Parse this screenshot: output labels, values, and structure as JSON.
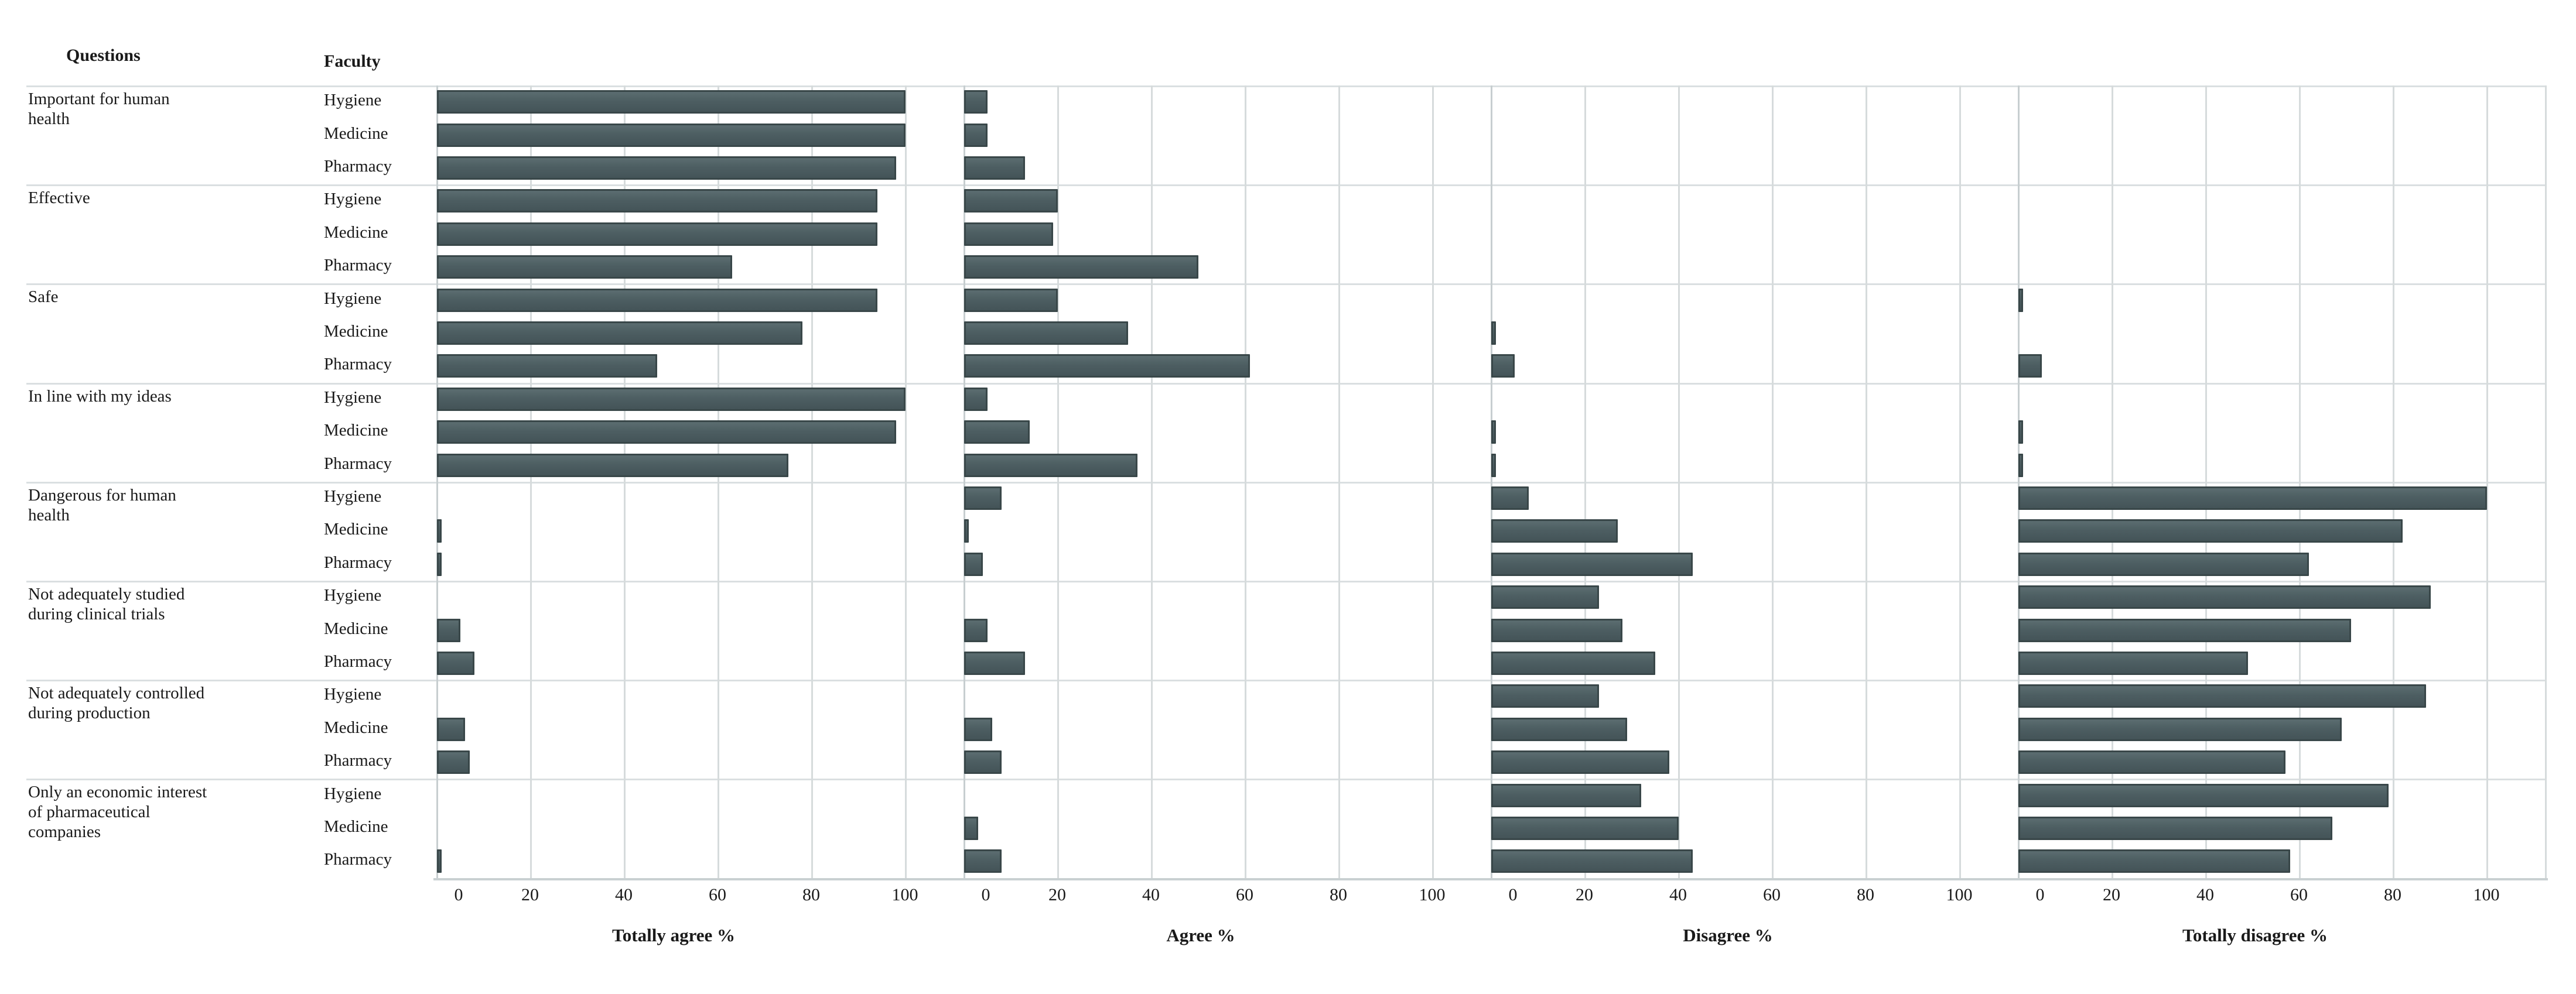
{
  "header": {
    "questions_label": "Questions",
    "faculty_label": "Faculty"
  },
  "colors": {
    "bar_fill": "#4d5e62",
    "bar_border": "#394749",
    "gridline": "#d6dbdc",
    "separator": "#dadfe1",
    "axis_line": "#c9d0d2",
    "background": "#ffffff"
  },
  "chart_data": {
    "type": "bar",
    "orientation": "horizontal",
    "grid": true,
    "legend": false,
    "axis_range": [
      0,
      100
    ],
    "axis_ticks": [
      0,
      20,
      40,
      60,
      80,
      100
    ],
    "panels": [
      "Totally agree %",
      "Agree %",
      "Disagree %",
      "Totally disagree %"
    ],
    "faculties": [
      "Hygiene",
      "Medicine",
      "Pharmacy"
    ],
    "questions": [
      "Important  for human\nhealth",
      "Effective",
      "Safe",
      "In line with my ideas",
      "Dangerous for human\nhealth",
      "Not adequately studied\nduring clinical  trials",
      "Not adequately controlled\nduring production",
      "Only an economic interest\nof pharmaceutical\ncompanies"
    ],
    "series": [
      {
        "panel": "Totally agree %",
        "values": [
          {
            "question": "Important  for human health",
            "Hygiene": 100,
            "Medicine": 100,
            "Pharmacy": 98
          },
          {
            "question": "Effective",
            "Hygiene": 94,
            "Medicine": 94,
            "Pharmacy": 63
          },
          {
            "question": "Safe",
            "Hygiene": 94,
            "Medicine": 78,
            "Pharmacy": 47
          },
          {
            "question": "In line with my ideas",
            "Hygiene": 100,
            "Medicine": 98,
            "Pharmacy": 75
          },
          {
            "question": "Dangerous for human health",
            "Hygiene": 0,
            "Medicine": 1,
            "Pharmacy": 1
          },
          {
            "question": "Not adequately studied during clinical trials",
            "Hygiene": 0,
            "Medicine": 5,
            "Pharmacy": 8
          },
          {
            "question": "Not adequately controlled during production",
            "Hygiene": 0,
            "Medicine": 6,
            "Pharmacy": 7
          },
          {
            "question": "Only an economic interest of pharmaceutical companies",
            "Hygiene": 0,
            "Medicine": 0,
            "Pharmacy": 1
          }
        ]
      },
      {
        "panel": "Agree %",
        "values": [
          {
            "question": "Important  for human health",
            "Hygiene": 5,
            "Medicine": 5,
            "Pharmacy": 13
          },
          {
            "question": "Effective",
            "Hygiene": 20,
            "Medicine": 19,
            "Pharmacy": 50
          },
          {
            "question": "Safe",
            "Hygiene": 20,
            "Medicine": 35,
            "Pharmacy": 61
          },
          {
            "question": "In line with my ideas",
            "Hygiene": 5,
            "Medicine": 14,
            "Pharmacy": 37
          },
          {
            "question": "Dangerous for human health",
            "Hygiene": 8,
            "Medicine": 1,
            "Pharmacy": 4
          },
          {
            "question": "Not adequately studied during clinical trials",
            "Hygiene": 0,
            "Medicine": 5,
            "Pharmacy": 13
          },
          {
            "question": "Not adequately controlled during production",
            "Hygiene": 0,
            "Medicine": 6,
            "Pharmacy": 8
          },
          {
            "question": "Only an economic interest of pharmaceutical companies",
            "Hygiene": 0,
            "Medicine": 3,
            "Pharmacy": 8
          }
        ]
      },
      {
        "panel": "Disagree %",
        "values": [
          {
            "question": "Important  for human health",
            "Hygiene": 0,
            "Medicine": 0,
            "Pharmacy": 0
          },
          {
            "question": "Effective",
            "Hygiene": 0,
            "Medicine": 0,
            "Pharmacy": 0
          },
          {
            "question": "Safe",
            "Hygiene": 0,
            "Medicine": 1,
            "Pharmacy": 5
          },
          {
            "question": "In line with my ideas",
            "Hygiene": 0,
            "Medicine": 1,
            "Pharmacy": 1
          },
          {
            "question": "Dangerous for human health",
            "Hygiene": 8,
            "Medicine": 27,
            "Pharmacy": 43
          },
          {
            "question": "Not adequately studied during clinical trials",
            "Hygiene": 23,
            "Medicine": 28,
            "Pharmacy": 35
          },
          {
            "question": "Not adequately controlled during production",
            "Hygiene": 23,
            "Medicine": 29,
            "Pharmacy": 38
          },
          {
            "question": "Only an economic interest of pharmaceutical companies",
            "Hygiene": 32,
            "Medicine": 40,
            "Pharmacy": 43
          }
        ]
      },
      {
        "panel": "Totally disagree %",
        "values": [
          {
            "question": "Important  for human health",
            "Hygiene": 0,
            "Medicine": 0,
            "Pharmacy": 0
          },
          {
            "question": "Effective",
            "Hygiene": 0,
            "Medicine": 0,
            "Pharmacy": 0
          },
          {
            "question": "Safe",
            "Hygiene": 1,
            "Medicine": 0,
            "Pharmacy": 5
          },
          {
            "question": "In line with my ideas",
            "Hygiene": 0,
            "Medicine": 1,
            "Pharmacy": 1
          },
          {
            "question": "Dangerous for human health",
            "Hygiene": 100,
            "Medicine": 82,
            "Pharmacy": 62
          },
          {
            "question": "Not adequately studied during clinical trials",
            "Hygiene": 88,
            "Medicine": 71,
            "Pharmacy": 49
          },
          {
            "question": "Not adequately controlled during production",
            "Hygiene": 87,
            "Medicine": 69,
            "Pharmacy": 57
          },
          {
            "question": "Only an economic interest of pharmaceutical companies",
            "Hygiene": 79,
            "Medicine": 67,
            "Pharmacy": 58
          }
        ]
      }
    ]
  }
}
